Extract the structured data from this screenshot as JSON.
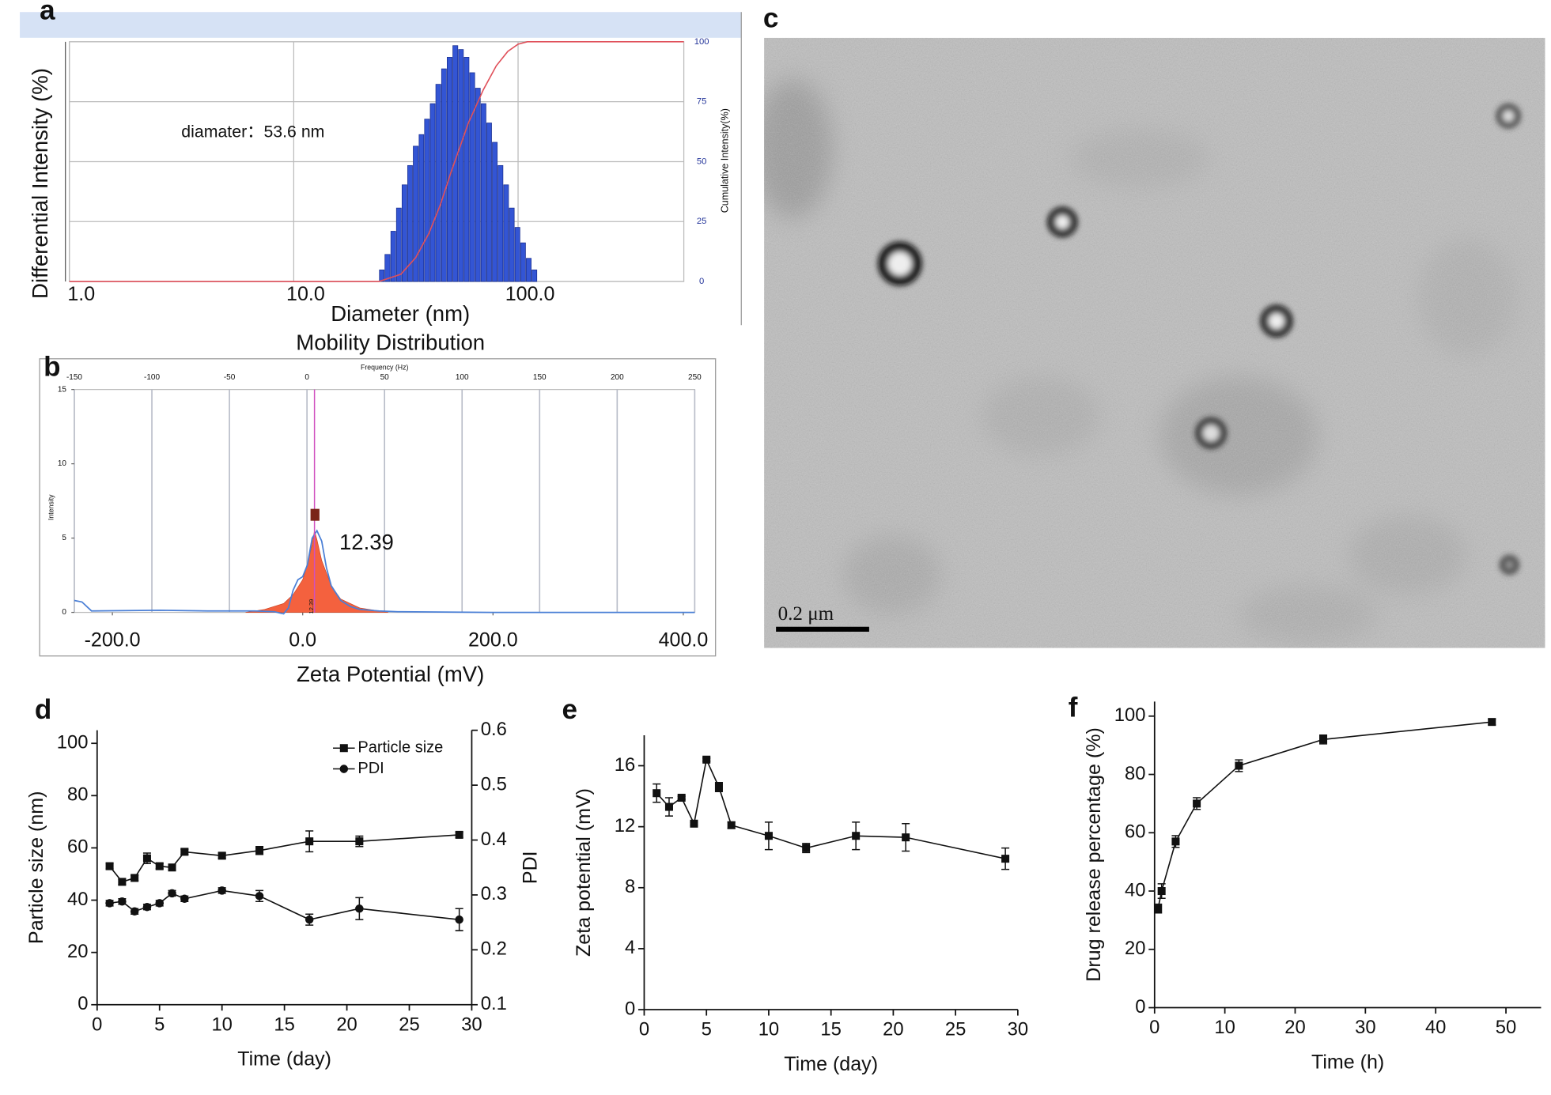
{
  "chart_data": [
    {
      "panel": "a",
      "type": "histogram",
      "title": "Mobility Distribution",
      "xlabel": "Diameter (nm)",
      "ylabel": "Differential Intensity (%)",
      "y2label": "Cumulative Intensity(%)",
      "annotation": "diamater：53.6 nm",
      "xscale": "log",
      "xlim": [
        1,
        548
      ],
      "xticks": [
        {
          "value": 1,
          "label": "1.0"
        },
        {
          "value": 10,
          "label": "10.0"
        },
        {
          "value": 100,
          "label": "100.0"
        }
      ],
      "ylim": [
        0,
        6.2
      ],
      "y2lim": [
        0,
        100
      ],
      "y2ticks": [
        0,
        25,
        50,
        75,
        100
      ],
      "grid": true,
      "color": "#3355d4",
      "bins": [
        24.1,
        25.5,
        27.1,
        28.7,
        30.4,
        32.2,
        34.1,
        36.2,
        38.3,
        40.6,
        43.0,
        45.6,
        48.3,
        51.2,
        54.3,
        57.5,
        60.9,
        64.6,
        68.4,
        72.5,
        76.8,
        81.4,
        86.3,
        91.4,
        96.9,
        102.7,
        108.8,
        115.3,
        122.2
      ],
      "values": [
        0.3,
        0.7,
        1.3,
        1.9,
        2.5,
        3.0,
        3.5,
        3.8,
        4.2,
        4.6,
        5.1,
        5.5,
        5.8,
        6.1,
        6.0,
        5.8,
        5.4,
        5.0,
        4.6,
        4.1,
        3.6,
        3.0,
        2.5,
        1.9,
        1.4,
        1.0,
        0.6,
        0.3
      ],
      "cumulative": {
        "color": "#e0505a",
        "axis": "y2",
        "x": [
          1,
          24,
          30,
          35,
          40,
          45,
          50,
          55,
          60,
          70,
          80,
          90,
          100,
          110,
          548
        ],
        "values": [
          0,
          0,
          3,
          10,
          20,
          32,
          45,
          56,
          66,
          80,
          90,
          96,
          99,
          100,
          100
        ]
      }
    },
    {
      "panel": "b",
      "type": "distribution",
      "xlabel": "Zeta Potential (mV)",
      "ylabel": "Intensity",
      "x2label": "Frequency (Hz)",
      "xlim": [
        -240,
        412
      ],
      "xticks": [
        {
          "value": -200,
          "label": "-200.0"
        },
        {
          "value": 0,
          "label": "0.0"
        },
        {
          "value": 200,
          "label": "200.0"
        },
        {
          "value": 400,
          "label": "400.0"
        }
      ],
      "x2lim": [
        -150,
        250
      ],
      "x2ticks": [
        -150,
        -100,
        -50,
        0,
        50,
        100,
        150,
        200,
        250
      ],
      "ylim": [
        0,
        15
      ],
      "yticks": [
        0,
        5,
        10,
        15
      ],
      "grid": true,
      "peak": 12.39,
      "peak_color": "#d050c0",
      "series": [
        {
          "color": "#f4613e",
          "fill": true,
          "x": [
            -60,
            -40,
            -20,
            -10,
            0,
            5,
            10,
            12.39,
            15,
            20,
            30,
            40,
            60,
            80,
            90
          ],
          "values": [
            0,
            0.2,
            0.6,
            1.2,
            2.2,
            3.2,
            4.6,
            5.5,
            4.9,
            3.5,
            1.8,
            0.9,
            0.3,
            0.1,
            0
          ]
        },
        {
          "color": "#4a7fd6",
          "fill": false,
          "x": [
            -240,
            -232,
            -222,
            -150,
            -100,
            -50,
            -30,
            -20,
            -15,
            -10,
            -5,
            0,
            5,
            10,
            15,
            20,
            25,
            30,
            40,
            50,
            60,
            80,
            100,
            200,
            300,
            412
          ],
          "values": [
            0.8,
            0.7,
            0.1,
            0.15,
            0.1,
            0.1,
            0.05,
            -0.1,
            0.3,
            1.5,
            2.2,
            2.4,
            3.2,
            5.0,
            5.5,
            4.8,
            3.0,
            1.8,
            0.8,
            0.4,
            0.2,
            0.1,
            0.05,
            0,
            0,
            0
          ]
        }
      ]
    },
    {
      "panel": "d",
      "type": "line",
      "xlabel": "Time (day)",
      "ylabel": "Particle size (nm)",
      "y2label": "PDI",
      "legend": "upper right",
      "xlim": [
        0,
        30
      ],
      "xticks": [
        0,
        5,
        10,
        15,
        20,
        25,
        30
      ],
      "ylim": [
        0,
        105
      ],
      "yticks": [
        0,
        20,
        40,
        60,
        80,
        100
      ],
      "y2lim": [
        0.1,
        0.6
      ],
      "y2ticks": [
        0.1,
        0.2,
        0.3,
        0.4,
        0.5,
        0.6
      ],
      "x": [
        1,
        2,
        3,
        4,
        5,
        6,
        7,
        10,
        13,
        17,
        21,
        29
      ],
      "series": [
        {
          "name": "Particle size",
          "color": "#111111",
          "marker": "square",
          "values": [
            53,
            47,
            48.5,
            56,
            53,
            52.5,
            58.5,
            57,
            59,
            62.5,
            62.5,
            65
          ],
          "errors": [
            1,
            1,
            1,
            2,
            1,
            1,
            1,
            1,
            1.5,
            4,
            2,
            1
          ]
        },
        {
          "name": "PDI",
          "color": "#111111",
          "marker": "circle",
          "axis": "y2",
          "values": [
            0.285,
            0.288,
            0.27,
            0.278,
            0.285,
            0.303,
            0.293,
            0.308,
            0.298,
            0.255,
            0.275,
            0.255
          ],
          "errors": [
            0.005,
            0.005,
            0.005,
            0.005,
            0.005,
            0.005,
            0.005,
            0.005,
            0.01,
            0.01,
            0.02,
            0.02
          ]
        }
      ]
    },
    {
      "panel": "e",
      "type": "line",
      "xlabel": "Time (day)",
      "ylabel": "Zeta potential (mV)",
      "xlim": [
        0,
        30
      ],
      "xticks": [
        0,
        5,
        10,
        15,
        20,
        25,
        30
      ],
      "ylim": [
        0,
        18
      ],
      "yticks": [
        0,
        4,
        8,
        12,
        16
      ],
      "x": [
        1,
        2,
        3,
        4,
        5,
        6,
        7,
        10,
        13,
        17,
        21,
        29
      ],
      "series": [
        {
          "color": "#111111",
          "marker": "square",
          "values": [
            14.2,
            13.3,
            13.9,
            12.2,
            16.4,
            14.6,
            12.1,
            11.4,
            10.6,
            11.4,
            11.3,
            9.9
          ],
          "errors": [
            0.6,
            0.6,
            0.1,
            0.1,
            0.1,
            0.3,
            0.2,
            0.9,
            0.3,
            0.9,
            0.9,
            0.7
          ]
        }
      ]
    },
    {
      "panel": "f",
      "type": "line",
      "xlabel": "Time (h)",
      "ylabel": "Drug release percentage (%)",
      "xlim": [
        0,
        55
      ],
      "xticks": [
        0,
        10,
        20,
        30,
        40,
        50
      ],
      "ylim": [
        0,
        105
      ],
      "yticks": [
        0,
        20,
        40,
        60,
        80,
        100
      ],
      "x": [
        0.5,
        1,
        3,
        6,
        12,
        24,
        48
      ],
      "series": [
        {
          "color": "#111111",
          "marker": "square",
          "values": [
            34,
            40,
            57,
            70,
            83,
            92,
            98
          ],
          "errors": [
            1.5,
            2.5,
            2,
            2,
            2,
            1.5,
            1
          ]
        }
      ]
    }
  ],
  "image": {
    "panel": "c",
    "scale_bar": "0.2 μm"
  }
}
